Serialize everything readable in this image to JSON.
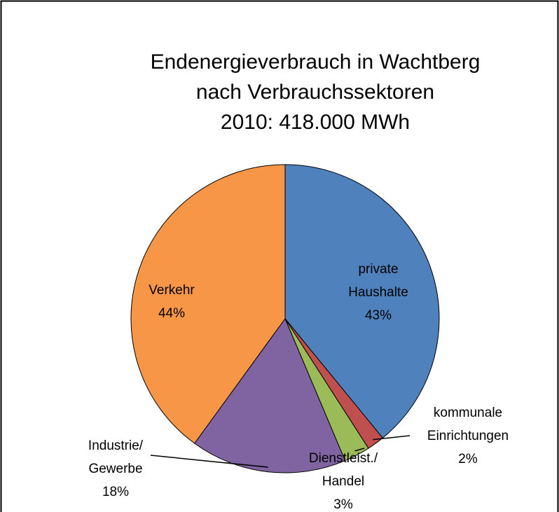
{
  "chart_data": {
    "type": "pie",
    "title": [
      "Endenergieverbrauch in Wachtberg",
      "nach Verbrauchssektoren",
      "2010:  418.000 MWh"
    ],
    "categories": [
      "private Haushalte",
      "kommunale Einrichtungen",
      "Dienstleist./ Handel",
      "Industrie/ Gewerbe",
      "Verkehr"
    ],
    "values": [
      43,
      2,
      3,
      18,
      44
    ],
    "value_labels": [
      "43%",
      "2%",
      "3%",
      "18%",
      "44%"
    ],
    "colors": [
      "#4f81bd",
      "#c0504d",
      "#9bbb59",
      "#8064a2",
      "#f79646"
    ]
  }
}
